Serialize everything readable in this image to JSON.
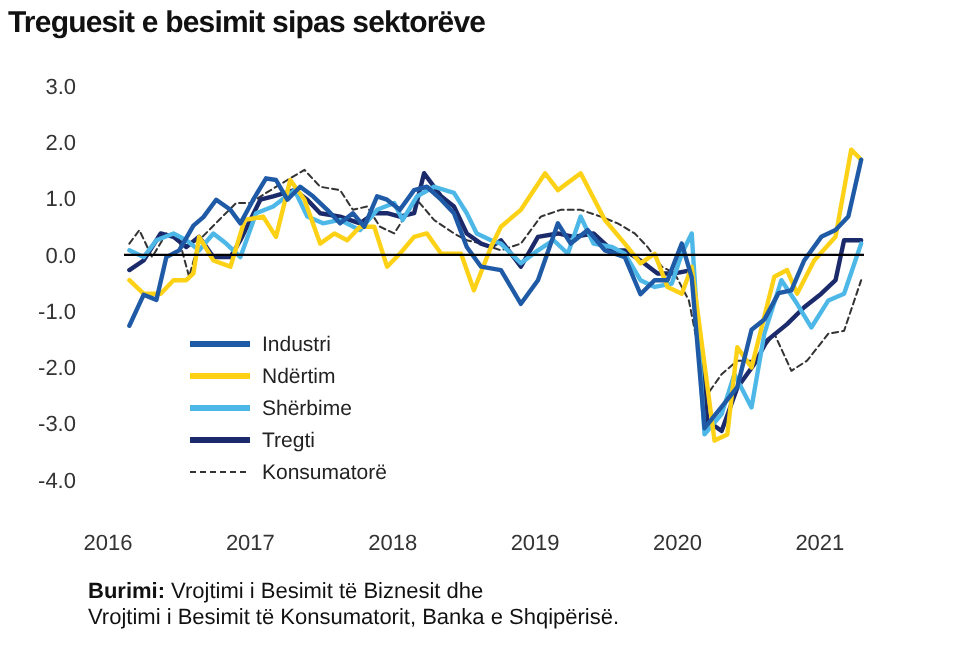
{
  "chart_data": {
    "type": "line",
    "title": "Treguesit e besimit sipas sektorëve",
    "annotations": [
      "Burimi: Vrojtimi i Besimit të Biznesit dhe",
      "Vrojtimi i Besimit të Konsumatorit, Banka e Shqipërisë."
    ],
    "xlim": [
      2016,
      2021.31
    ],
    "xticks": [
      2016,
      2017,
      2018,
      2019,
      2020,
      2021
    ],
    "ylim": [
      -4,
      3
    ],
    "yticks": [
      {
        "value": 3,
        "label": "3.0"
      },
      {
        "value": 2,
        "label": "2.0"
      },
      {
        "value": 1,
        "label": "1.0"
      },
      {
        "value": 0,
        "label": "0.0"
      },
      {
        "value": -1,
        "label": "-1.0"
      },
      {
        "value": -2,
        "label": "-2.0"
      },
      {
        "value": -3,
        "label": "-3.0"
      },
      {
        "value": -4,
        "label": "-4.0"
      }
    ],
    "grid": false,
    "legend": "bottom left",
    "line_style": "solid",
    "marker": "none",
    "ref_lines": [
      {
        "axis": "y",
        "value": 0,
        "color": "#000000"
      }
    ],
    "series": [
      {
        "name": "Industri",
        "color": "#1f5aa6",
        "x": [
          2016.15,
          2016.25,
          2016.34,
          2016.41,
          2016.5,
          2016.6,
          2016.67,
          2016.76,
          2016.86,
          2016.93,
          2017.02,
          2017.11,
          2017.18,
          2017.26,
          2017.35,
          2017.44,
          2017.54,
          2017.63,
          2017.72,
          2017.8,
          2017.89,
          2017.96,
          2018.05,
          2018.15,
          2018.24,
          2018.34,
          2018.43,
          2018.52,
          2018.62,
          2018.76,
          2018.9,
          2019.02,
          2019.16,
          2019.25,
          2019.37,
          2019.49,
          2019.63,
          2019.74,
          2019.84,
          2019.93,
          2020.03,
          2020.1,
          2020.19,
          2020.31,
          2020.42,
          2020.52,
          2020.61,
          2020.71,
          2020.8,
          2020.89,
          2021.01,
          2021.11,
          2021.2,
          2021.29
        ],
        "values": [
          -1.26,
          -0.71,
          -0.8,
          -0.04,
          0.08,
          0.52,
          0.67,
          0.98,
          0.8,
          0.56,
          0.98,
          1.36,
          1.33,
          0.98,
          1.21,
          1.04,
          0.8,
          0.56,
          0.74,
          0.5,
          1.04,
          0.98,
          0.8,
          1.15,
          1.21,
          0.98,
          0.74,
          0.14,
          -0.21,
          -0.27,
          -0.87,
          -0.45,
          0.56,
          0.2,
          0.44,
          0.08,
          -0.04,
          -0.7,
          -0.45,
          -0.45,
          0.2,
          -0.4,
          -3.08,
          -2.7,
          -2.35,
          -1.33,
          -1.15,
          -0.68,
          -0.63,
          -0.1,
          0.32,
          0.44,
          0.68,
          1.69
        ]
      },
      {
        "name": "Ndërtim",
        "color": "#fcd116",
        "x": [
          2016.15,
          2016.25,
          2016.37,
          2016.46,
          2016.55,
          2016.6,
          2016.64,
          2016.74,
          2016.86,
          2016.96,
          2017.09,
          2017.18,
          2017.28,
          2017.38,
          2017.49,
          2017.59,
          2017.68,
          2017.77,
          2017.87,
          2017.96,
          2018.05,
          2018.15,
          2018.24,
          2018.34,
          2018.48,
          2018.57,
          2018.69,
          2018.76,
          2018.9,
          2019.07,
          2019.16,
          2019.32,
          2019.49,
          2019.63,
          2019.74,
          2019.84,
          2019.93,
          2020.03,
          2020.1,
          2020.26,
          2020.35,
          2020.42,
          2020.52,
          2020.68,
          2020.77,
          2020.84,
          2020.96,
          2021.11,
          2021.22,
          2021.29
        ],
        "values": [
          -0.45,
          -0.69,
          -0.69,
          -0.45,
          -0.45,
          -0.33,
          0.32,
          -0.1,
          -0.21,
          0.62,
          0.68,
          0.32,
          1.33,
          0.98,
          0.2,
          0.38,
          0.26,
          0.5,
          0.5,
          -0.21,
          0.02,
          0.32,
          0.38,
          0.02,
          0.02,
          -0.63,
          0.14,
          0.5,
          0.8,
          1.45,
          1.15,
          1.45,
          0.62,
          0.2,
          -0.15,
          0.02,
          -0.57,
          -0.69,
          -0.21,
          -3.3,
          -3.19,
          -1.64,
          -2.0,
          -0.39,
          -0.27,
          -0.69,
          -0.1,
          0.32,
          1.87,
          1.69
        ]
      },
      {
        "name": "Shërbime",
        "color": "#4db8e8",
        "x": [
          2016.15,
          2016.25,
          2016.34,
          2016.46,
          2016.55,
          2016.64,
          2016.74,
          2016.83,
          2016.93,
          2017.04,
          2017.16,
          2017.31,
          2017.4,
          2017.51,
          2017.63,
          2017.77,
          2017.89,
          2018.01,
          2018.07,
          2018.17,
          2018.29,
          2018.43,
          2018.52,
          2018.59,
          2018.69,
          2018.76,
          2018.9,
          2019.02,
          2019.13,
          2019.23,
          2019.32,
          2019.41,
          2019.54,
          2019.63,
          2019.74,
          2019.84,
          2019.96,
          2020.03,
          2020.1,
          2020.19,
          2020.31,
          2020.4,
          2020.52,
          2020.61,
          2020.73,
          2020.84,
          2020.94,
          2021.06,
          2021.17,
          2021.29
        ],
        "values": [
          0.08,
          -0.04,
          0.26,
          0.38,
          0.26,
          0.08,
          0.38,
          0.2,
          -0.04,
          0.74,
          0.86,
          1.15,
          0.68,
          0.56,
          0.62,
          0.44,
          0.8,
          0.92,
          0.62,
          1.04,
          1.21,
          1.1,
          0.74,
          0.38,
          0.26,
          0.2,
          -0.15,
          0.08,
          0.26,
          0.02,
          0.68,
          0.2,
          0.14,
          0.02,
          -0.45,
          -0.57,
          -0.51,
          0.02,
          0.38,
          -3.19,
          -2.83,
          -2.12,
          -2.71,
          -1.4,
          -0.45,
          -0.87,
          -1.29,
          -0.81,
          -0.69,
          0.2
        ]
      },
      {
        "name": "Tregti",
        "color": "#1b2a6b",
        "x": [
          2016.15,
          2016.25,
          2016.37,
          2016.46,
          2016.55,
          2016.64,
          2016.74,
          2016.86,
          2016.93,
          2017.07,
          2017.16,
          2017.31,
          2017.4,
          2017.49,
          2017.63,
          2017.77,
          2017.87,
          2017.96,
          2018.05,
          2018.15,
          2018.22,
          2018.34,
          2018.43,
          2018.52,
          2018.62,
          2018.69,
          2018.76,
          2018.9,
          2019.02,
          2019.16,
          2019.27,
          2019.41,
          2019.54,
          2019.63,
          2019.74,
          2019.86,
          2019.98,
          2020.1,
          2020.21,
          2020.31,
          2020.42,
          2020.54,
          2020.63,
          2020.77,
          2020.89,
          2021.01,
          2021.11,
          2021.17,
          2021.29
        ],
        "values": [
          -0.27,
          -0.1,
          0.38,
          0.32,
          0.14,
          0.32,
          -0.04,
          -0.04,
          0.26,
          0.98,
          1.04,
          1.15,
          0.98,
          0.74,
          0.68,
          0.56,
          0.74,
          0.74,
          0.68,
          0.74,
          1.45,
          1.04,
          0.86,
          0.38,
          0.2,
          0.14,
          0.26,
          -0.21,
          0.32,
          0.38,
          0.32,
          0.38,
          0.08,
          0.08,
          -0.1,
          -0.33,
          -0.33,
          -0.27,
          -2.95,
          -3.13,
          -2.36,
          -1.94,
          -1.52,
          -1.23,
          -0.93,
          -0.69,
          -0.45,
          0.26,
          0.26
        ]
      },
      {
        "name": "Konsumatorë",
        "color": "#333333",
        "line_style": "dashed",
        "x": [
          2016.15,
          2016.22,
          2016.31,
          2016.41,
          2016.5,
          2016.57,
          2016.64,
          2016.78,
          2016.9,
          2017.0,
          2017.11,
          2017.26,
          2017.38,
          2017.49,
          2017.63,
          2017.72,
          2017.82,
          2017.91,
          2018.01,
          2018.07,
          2018.17,
          2018.29,
          2018.43,
          2018.52,
          2018.62,
          2018.69,
          2018.76,
          2018.9,
          2019.04,
          2019.18,
          2019.32,
          2019.46,
          2019.58,
          2019.7,
          2019.79,
          2019.89,
          2019.98,
          2020.08,
          2020.21,
          2020.31,
          2020.42,
          2020.54,
          2020.68,
          2020.8,
          2020.91,
          2021.06,
          2021.17,
          2021.29
        ],
        "values": [
          0.2,
          0.44,
          -0.04,
          0.38,
          0.26,
          -0.39,
          0.26,
          0.62,
          0.92,
          0.92,
          1.1,
          1.33,
          1.51,
          1.21,
          1.15,
          0.8,
          0.86,
          0.5,
          0.38,
          0.62,
          0.98,
          0.62,
          0.38,
          0.26,
          0.2,
          0.14,
          0.08,
          0.2,
          0.68,
          0.8,
          0.8,
          0.68,
          0.56,
          0.38,
          0.14,
          -0.21,
          -0.33,
          -0.81,
          -2.48,
          -2.12,
          -1.88,
          -1.88,
          -1.4,
          -2.06,
          -1.88,
          -1.4,
          -1.35,
          -0.45
        ]
      }
    ]
  }
}
